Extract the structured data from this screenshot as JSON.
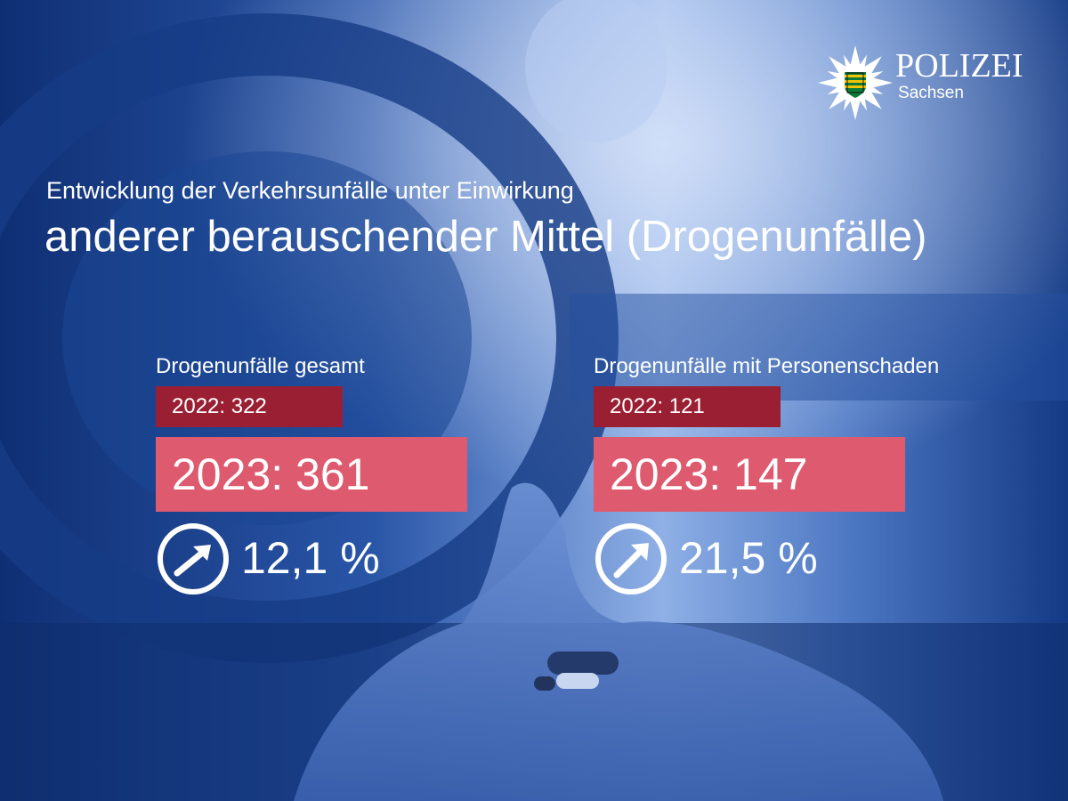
{
  "brand": {
    "name": "POLIZEI",
    "region": "Sachsen",
    "colors": {
      "navy": "#123a85",
      "light_blue": "#a9c1ef",
      "dark_red": "#9a1f33",
      "rose": "#de5b6f",
      "white": "#ffffff"
    },
    "icon": "police-star-icon"
  },
  "heading": {
    "subtitle": "Entwicklung der Verkehrsunfälle unter Einwirkung",
    "title": "anderer berauschender Mittel (Drogenunfälle)"
  },
  "stats": [
    {
      "label": "Drogenunfälle gesamt",
      "previous": "2022: 322",
      "current": "2023: 361",
      "change": "12,1 %",
      "icon": "trend-up-icon"
    },
    {
      "label": "Drogenunfälle mit Personenschaden",
      "previous": "2022: 121",
      "current": "2023: 147",
      "change": "21,5 %",
      "icon": "trend-up-icon"
    }
  ]
}
